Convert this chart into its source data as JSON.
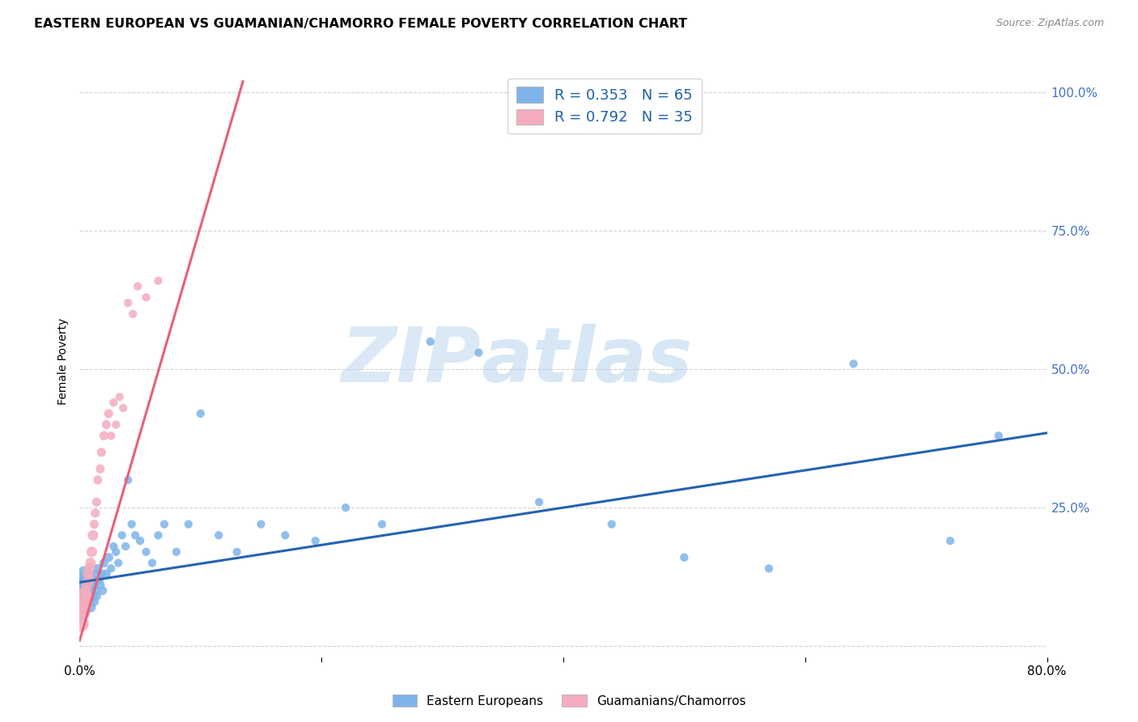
{
  "title": "EASTERN EUROPEAN VS GUAMANIAN/CHAMORRO FEMALE POVERTY CORRELATION CHART",
  "source": "Source: ZipAtlas.com",
  "ylabel": "Female Poverty",
  "xlim": [
    0.0,
    0.8
  ],
  "ylim": [
    -0.02,
    1.05
  ],
  "yticks": [
    0.0,
    0.25,
    0.5,
    0.75,
    1.0
  ],
  "ytick_labels": [
    "",
    "25.0%",
    "50.0%",
    "75.0%",
    "100.0%"
  ],
  "xticks": [
    0.0,
    0.2,
    0.4,
    0.6,
    0.8
  ],
  "xtick_labels": [
    "0.0%",
    "",
    "",
    "",
    "80.0%"
  ],
  "blue_R": 0.353,
  "blue_N": 65,
  "pink_R": 0.792,
  "pink_N": 35,
  "blue_color": "#7EB4EA",
  "pink_color": "#F4ACBE",
  "blue_line_color": "#2563B0",
  "pink_line_color": "#E8607A",
  "watermark_zip": "ZIP",
  "watermark_atlas": "atlas",
  "background_color": "#FFFFFF",
  "grid_color": "#D3D3D3",
  "blue_line_x0": 0.0,
  "blue_line_y0": 0.115,
  "blue_line_x1": 0.8,
  "blue_line_y1": 0.385,
  "pink_line_x0": 0.0,
  "pink_line_y0": 0.01,
  "pink_line_x1": 0.135,
  "pink_line_y1": 1.02,
  "blue_scatter_x": [
    0.001,
    0.002,
    0.002,
    0.003,
    0.003,
    0.004,
    0.004,
    0.005,
    0.005,
    0.006,
    0.006,
    0.007,
    0.007,
    0.008,
    0.008,
    0.009,
    0.009,
    0.01,
    0.01,
    0.011,
    0.012,
    0.012,
    0.013,
    0.014,
    0.015,
    0.016,
    0.017,
    0.018,
    0.019,
    0.02,
    0.022,
    0.024,
    0.026,
    0.028,
    0.03,
    0.032,
    0.035,
    0.038,
    0.04,
    0.043,
    0.046,
    0.05,
    0.055,
    0.06,
    0.065,
    0.07,
    0.08,
    0.09,
    0.1,
    0.115,
    0.13,
    0.15,
    0.17,
    0.195,
    0.22,
    0.25,
    0.29,
    0.33,
    0.38,
    0.44,
    0.5,
    0.57,
    0.64,
    0.72,
    0.76
  ],
  "blue_scatter_y": [
    0.1,
    0.08,
    0.12,
    0.07,
    0.11,
    0.09,
    0.13,
    0.08,
    0.1,
    0.07,
    0.12,
    0.09,
    0.11,
    0.08,
    0.13,
    0.07,
    0.1,
    0.09,
    0.12,
    0.11,
    0.08,
    0.13,
    0.1,
    0.09,
    0.14,
    0.12,
    0.11,
    0.13,
    0.1,
    0.15,
    0.13,
    0.16,
    0.14,
    0.18,
    0.17,
    0.15,
    0.2,
    0.18,
    0.3,
    0.22,
    0.2,
    0.19,
    0.17,
    0.15,
    0.2,
    0.22,
    0.17,
    0.22,
    0.42,
    0.2,
    0.17,
    0.22,
    0.2,
    0.19,
    0.25,
    0.22,
    0.55,
    0.53,
    0.26,
    0.22,
    0.16,
    0.14,
    0.51,
    0.19,
    0.38
  ],
  "pink_scatter_x": [
    0.001,
    0.002,
    0.002,
    0.003,
    0.003,
    0.004,
    0.005,
    0.005,
    0.006,
    0.006,
    0.007,
    0.008,
    0.008,
    0.009,
    0.01,
    0.011,
    0.012,
    0.013,
    0.014,
    0.015,
    0.017,
    0.018,
    0.02,
    0.022,
    0.024,
    0.026,
    0.028,
    0.03,
    0.033,
    0.036,
    0.04,
    0.044,
    0.048,
    0.055,
    0.065
  ],
  "pink_scatter_y": [
    0.04,
    0.06,
    0.08,
    0.07,
    0.09,
    0.08,
    0.07,
    0.1,
    0.09,
    0.11,
    0.13,
    0.12,
    0.14,
    0.15,
    0.17,
    0.2,
    0.22,
    0.24,
    0.26,
    0.3,
    0.32,
    0.35,
    0.38,
    0.4,
    0.42,
    0.38,
    0.44,
    0.4,
    0.45,
    0.43,
    0.62,
    0.6,
    0.65,
    0.63,
    0.66
  ]
}
